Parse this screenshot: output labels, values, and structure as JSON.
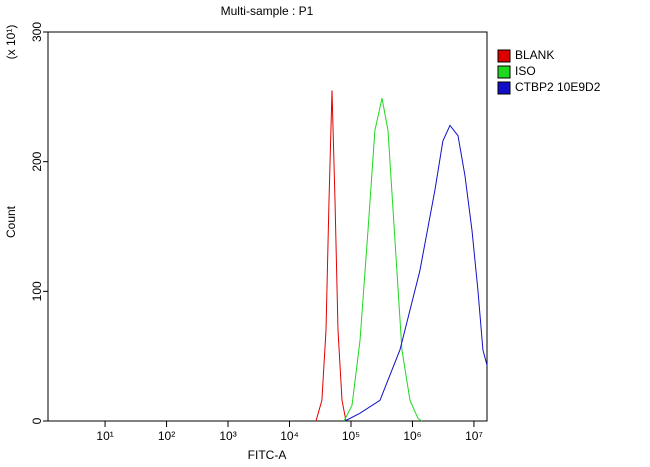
{
  "chart_data": {
    "type": "line",
    "title": "Multi-sample : P1",
    "x_label": "FITC-A",
    "y_label": "Count",
    "y_multiplier": "(x 10¹)",
    "log_x": true,
    "xlim": [
      1.18,
      16300000
    ],
    "ylim": [
      0,
      300
    ],
    "xticks": [
      {
        "value": 10,
        "label": "10¹"
      },
      {
        "value": 100,
        "label": "10²"
      },
      {
        "value": 1000,
        "label": "10³"
      },
      {
        "value": 10000,
        "label": "10⁴"
      },
      {
        "value": 100000,
        "label": "10⁵"
      },
      {
        "value": 1000000,
        "label": "10⁶"
      },
      {
        "value": 10000000,
        "label": "10⁷"
      }
    ],
    "yticks": [
      0,
      100,
      200,
      300
    ],
    "legend": "top-right",
    "series": [
      {
        "name": "BLANK",
        "color": "#e00000",
        "x": [
          27000,
          33700,
          39200,
          43900,
          49100,
          55000,
          61500,
          71400,
          82900
        ],
        "values": [
          0,
          16,
          70,
          170,
          255,
          170,
          70,
          16,
          0
        ]
      },
      {
        "name": "ISO",
        "color": "#1ed81e",
        "x": [
          76900,
          104000,
          140000,
          189000,
          245000,
          319000,
          400000,
          519000,
          674000,
          910000,
          1230000,
          1430000
        ],
        "values": [
          0,
          12,
          62,
          147,
          224,
          249,
          224,
          139,
          55,
          16,
          2,
          0
        ]
      },
      {
        "name": "CTBP2 10E9D2",
        "color": "#1010c8",
        "x": [
          79800,
          140000,
          296000,
          627000,
          1320000,
          2320000,
          3130000,
          4070000,
          5500000,
          7140000,
          9280000,
          11600000,
          14000000,
          16300000
        ],
        "values": [
          0,
          6,
          16,
          55,
          116,
          178,
          216,
          228,
          220,
          189,
          147,
          101,
          55,
          43
        ]
      }
    ]
  }
}
